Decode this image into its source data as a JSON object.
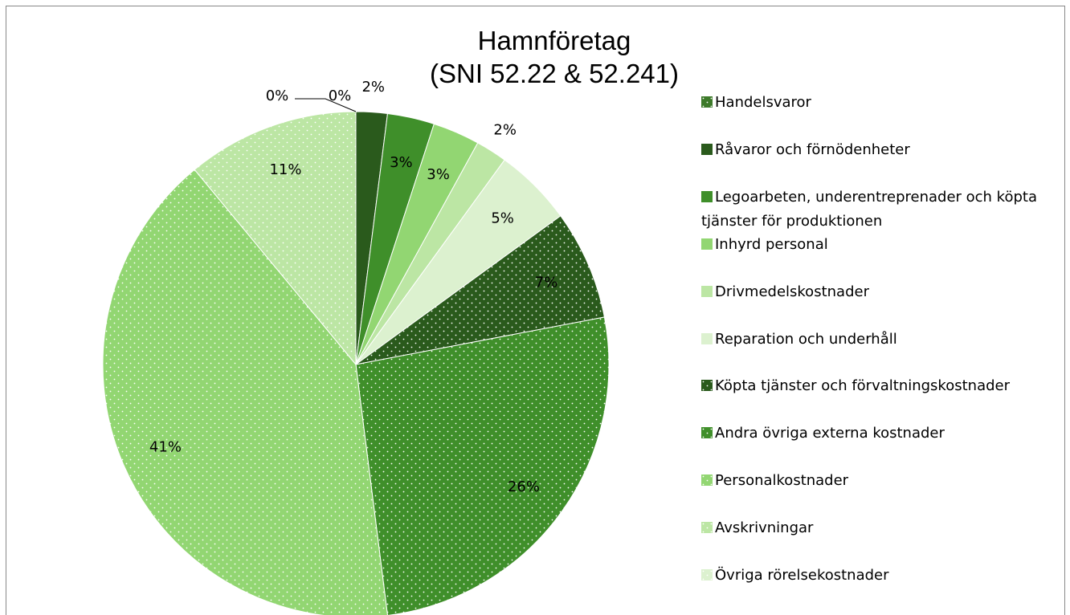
{
  "chart_data": {
    "type": "pie",
    "title": [
      "Hamnföretag",
      "(SNI 52.22 & 52.241)"
    ],
    "categories": [
      "Handelsvaror",
      "Råvaror och förnödenheter",
      "Legoarbeten, underentreprenader och köpta tjänster för produktionen",
      "Inhyrd personal",
      "Drivmedelskostnader",
      "Reparation och underhåll",
      "Köpta tjänster och förvaltningskostnader",
      "Andra övriga externa kostnader",
      "Personalkostnader",
      "Avskrivningar",
      "Övriga rörelsekostnader"
    ],
    "values": [
      0,
      2,
      3,
      3,
      2,
      5,
      7,
      26,
      41,
      11,
      0
    ],
    "value_labels": [
      "0%",
      "2%",
      "3%",
      "3%",
      "2%",
      "5%",
      "7%",
      "26%",
      "41%",
      "11%",
      "0%"
    ],
    "colors": [
      "#3d7a2a",
      "#2a5a1c",
      "#3f8f2a",
      "#92d672",
      "#bce6a4",
      "#dcf1cf",
      "#2a5a1c",
      "#3f8f2a",
      "#92d672",
      "#bce6a4",
      "#dcf1cf"
    ],
    "dotted": [
      true,
      false,
      false,
      false,
      false,
      false,
      true,
      true,
      true,
      true,
      true
    ],
    "legend": "right"
  }
}
